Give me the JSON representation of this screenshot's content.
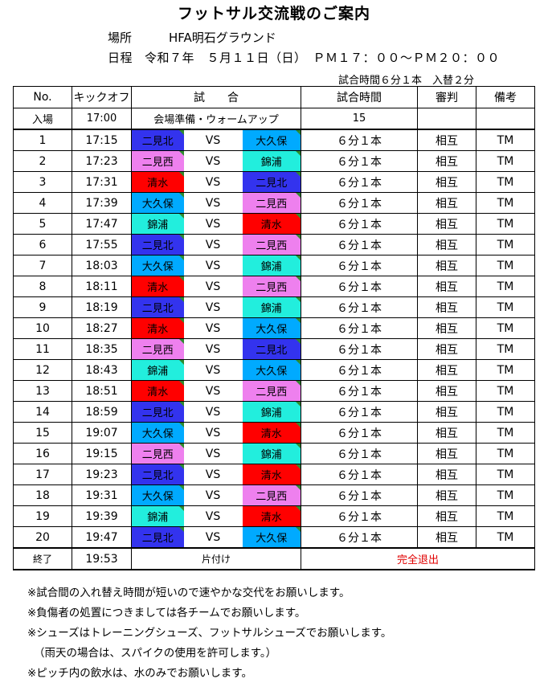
{
  "title": "フットサル交流戦のご案内",
  "venue": {
    "label": "場所",
    "value": "HFA明石グラウンド"
  },
  "schedule_date": {
    "label": "日程",
    "value": "令和７年　５月１１日（日）　ＰＭ１７：００〜ＰＭ２０：００"
  },
  "match_info": "試合時間６分１本　入替２分",
  "colors": {
    "二見北": "#3333ee",
    "二見西": "#ee80ee",
    "清水": "#ff0000",
    "大久保": "#00aaff",
    "錦浦": "#22eedd"
  },
  "table": {
    "headers": {
      "no": "No.",
      "kickoff": "キックオフ",
      "match": "試　　合",
      "duration": "試合時間",
      "referee": "審判",
      "remarks": "備考"
    },
    "entry": {
      "no": "入場",
      "time": "17:00",
      "label": "会場準備・ウォームアップ",
      "duration": "15"
    },
    "vs": "VS",
    "rows": [
      {
        "no": "1",
        "time": "17:15",
        "home": "二見北",
        "away": "大久保",
        "duration": "６分１本",
        "referee": "相互",
        "remarks": "TM"
      },
      {
        "no": "2",
        "time": "17:23",
        "home": "二見西",
        "away": "錦浦",
        "duration": "６分１本",
        "referee": "相互",
        "remarks": "TM"
      },
      {
        "no": "3",
        "time": "17:31",
        "home": "清水",
        "away": "二見北",
        "duration": "６分１本",
        "referee": "相互",
        "remarks": "TM"
      },
      {
        "no": "4",
        "time": "17:39",
        "home": "大久保",
        "away": "二見西",
        "duration": "６分１本",
        "referee": "相互",
        "remarks": "TM"
      },
      {
        "no": "5",
        "time": "17:47",
        "home": "錦浦",
        "away": "清水",
        "duration": "６分１本",
        "referee": "相互",
        "remarks": "TM"
      },
      {
        "no": "6",
        "time": "17:55",
        "home": "二見北",
        "away": "二見西",
        "duration": "６分１本",
        "referee": "相互",
        "remarks": "TM"
      },
      {
        "no": "7",
        "time": "18:03",
        "home": "大久保",
        "away": "錦浦",
        "duration": "６分１本",
        "referee": "相互",
        "remarks": "TM"
      },
      {
        "no": "8",
        "time": "18:11",
        "home": "清水",
        "away": "二見西",
        "duration": "６分１本",
        "referee": "相互",
        "remarks": "TM"
      },
      {
        "no": "9",
        "time": "18:19",
        "home": "二見北",
        "away": "錦浦",
        "duration": "６分１本",
        "referee": "相互",
        "remarks": "TM"
      },
      {
        "no": "10",
        "time": "18:27",
        "home": "清水",
        "away": "大久保",
        "duration": "６分１本",
        "referee": "相互",
        "remarks": "TM"
      },
      {
        "no": "11",
        "time": "18:35",
        "home": "二見西",
        "away": "二見北",
        "duration": "６分１本",
        "referee": "相互",
        "remarks": "TM"
      },
      {
        "no": "12",
        "time": "18:43",
        "home": "錦浦",
        "away": "大久保",
        "duration": "６分１本",
        "referee": "相互",
        "remarks": "TM"
      },
      {
        "no": "13",
        "time": "18:51",
        "home": "清水",
        "away": "二見西",
        "duration": "６分１本",
        "referee": "相互",
        "remarks": "TM"
      },
      {
        "no": "14",
        "time": "18:59",
        "home": "二見北",
        "away": "錦浦",
        "duration": "６分１本",
        "referee": "相互",
        "remarks": "TM"
      },
      {
        "no": "15",
        "time": "19:07",
        "home": "大久保",
        "away": "清水",
        "duration": "６分１本",
        "referee": "相互",
        "remarks": "TM"
      },
      {
        "no": "16",
        "time": "19:15",
        "home": "二見西",
        "away": "錦浦",
        "duration": "６分１本",
        "referee": "相互",
        "remarks": "TM"
      },
      {
        "no": "17",
        "time": "19:23",
        "home": "二見北",
        "away": "清水",
        "duration": "６分１本",
        "referee": "相互",
        "remarks": "TM"
      },
      {
        "no": "18",
        "time": "19:31",
        "home": "大久保",
        "away": "二見西",
        "duration": "６分１本",
        "referee": "相互",
        "remarks": "TM"
      },
      {
        "no": "19",
        "time": "19:39",
        "home": "錦浦",
        "away": "清水",
        "duration": "６分１本",
        "referee": "相互",
        "remarks": "TM"
      },
      {
        "no": "20",
        "time": "19:47",
        "home": "二見北",
        "away": "大久保",
        "duration": "６分１本",
        "referee": "相互",
        "remarks": "TM"
      }
    ],
    "end": {
      "no": "終了",
      "time": "19:53",
      "label": "片付け",
      "note": "完全退出"
    }
  },
  "notes": [
    "※試合間の入れ替え時間が短いので速やかな交代をお願いします。",
    "※負傷者の処置につきましては各チームでお願いします。",
    "※シューズはトレーニングシューズ、フットサルシューズでお願いします。",
    "（雨天の場合は、スパイクの使用を許可します。）",
    "※ピッチ内の飲水は、水のみでお願いします。"
  ]
}
